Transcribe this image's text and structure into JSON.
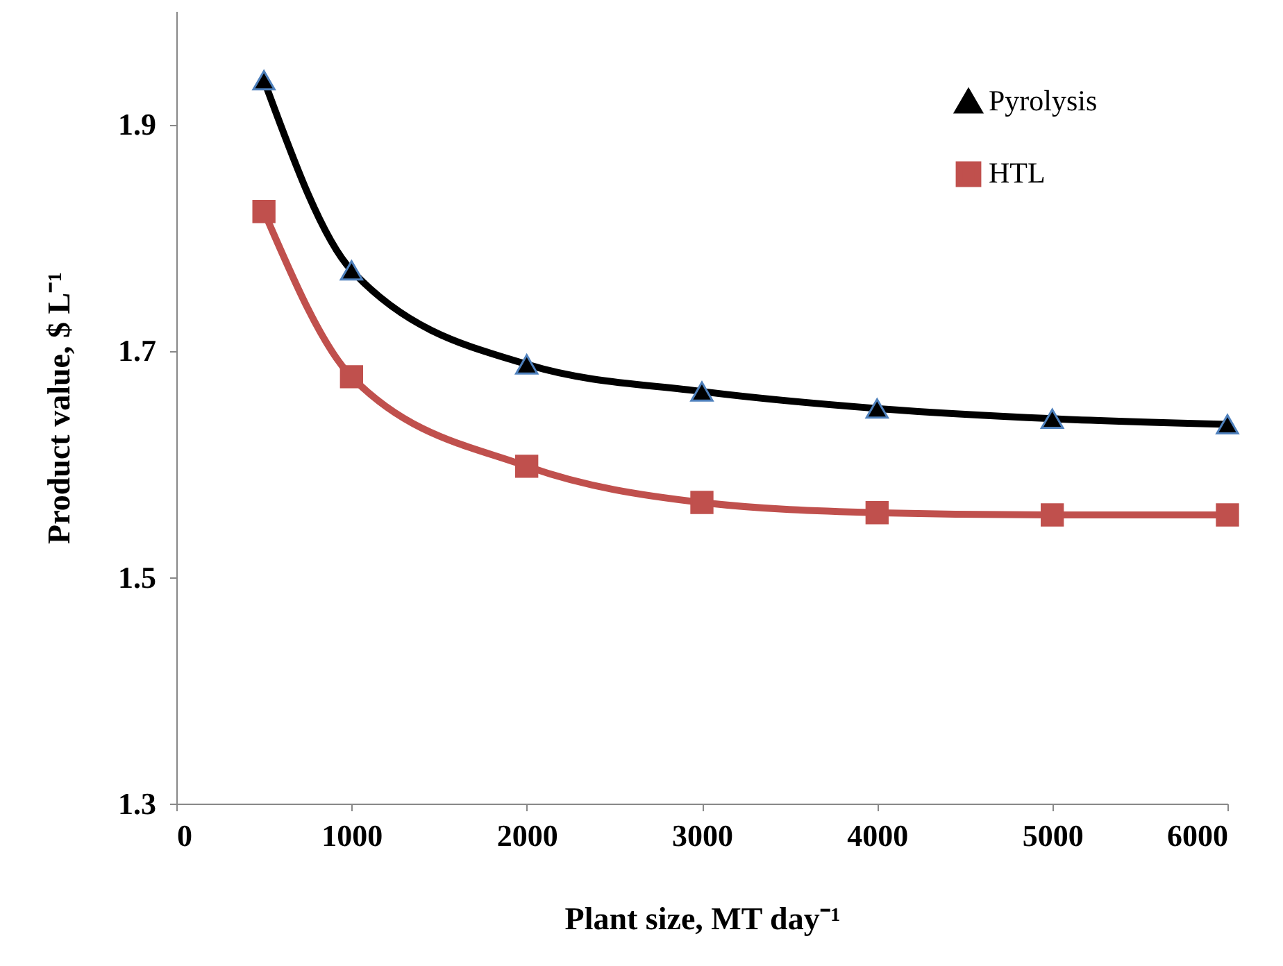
{
  "chart_data": {
    "type": "line",
    "xlabel": "Plant size, MT day⁻¹",
    "ylabel": "Product value, $ L⁻¹",
    "x": [
      500,
      1000,
      2000,
      3000,
      4000,
      5000,
      6000
    ],
    "series": [
      {
        "name": "Pyrolysis",
        "color": "#000000",
        "marker": "triangle",
        "values": [
          1.939,
          1.771,
          1.688,
          1.664,
          1.649,
          1.64,
          1.635
        ]
      },
      {
        "name": "HTL",
        "color": "#c0504d",
        "marker": "square",
        "values": [
          1.823,
          1.677,
          1.598,
          1.566,
          1.557,
          1.555,
          1.555
        ]
      }
    ],
    "xlim": [
      0,
      6000
    ],
    "xticks": [
      0,
      1000,
      2000,
      3000,
      4000,
      5000,
      6000
    ],
    "ylim": [
      1.3,
      2.0
    ],
    "yticks": [
      1.3,
      1.5,
      1.7,
      1.9
    ],
    "grid": false,
    "legend": "top right"
  }
}
